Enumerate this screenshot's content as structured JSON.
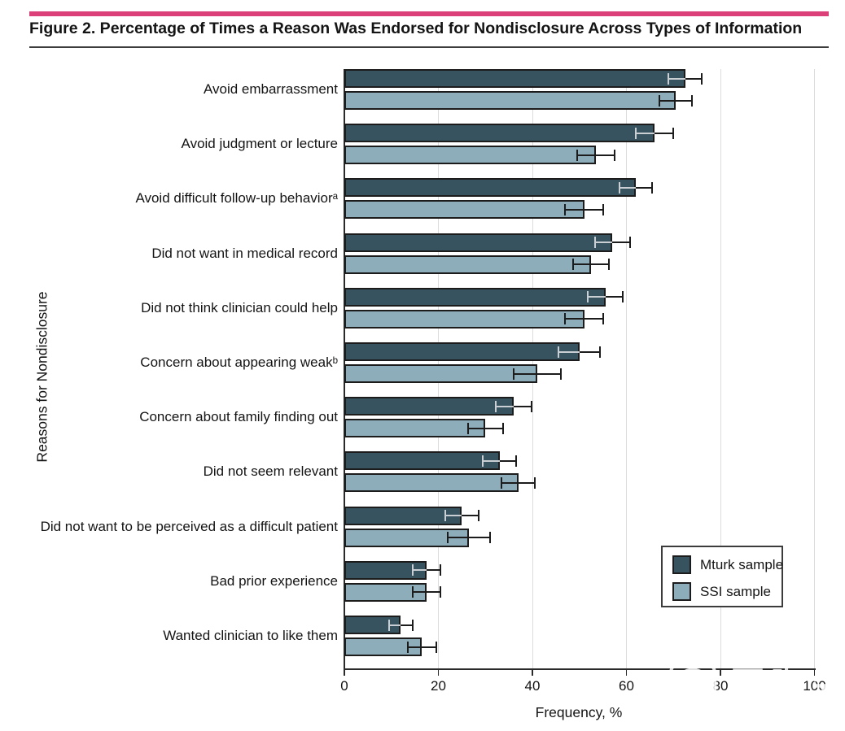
{
  "figure": {
    "title": "Figure 2. Percentage of Times a Reason Was Endorsed for Nondisclosure Across Types of Information"
  },
  "colors": {
    "accent_pink": "#DB4078",
    "mturk_bar": "#36535F",
    "ssi_bar": "#8EADBB",
    "bar_outline": "#1c1c1c",
    "gridline": "#dcdcdc",
    "axis": "#2a2a2a",
    "error_outer": "#1c1c1c",
    "error_inner_on_dark": "#C9CFD2"
  },
  "legend": {
    "items": [
      {
        "label": "Mturk sample",
        "color": "#36535F"
      },
      {
        "label": "SSI sample",
        "color": "#8EADBB"
      }
    ]
  },
  "watermark": {
    "cn_text": "医咖会",
    "en_text": "MEDIECO GROUP",
    "logo": "speech-bubble-logo"
  },
  "chart_data": {
    "type": "bar",
    "orientation": "horizontal",
    "title": "Figure 2. Percentage of Times a Reason Was Endorsed for Nondisclosure Across Types of Information",
    "xlabel": "Frequency, %",
    "ylabel": "Reasons for Nondisclosure",
    "xlim": [
      0,
      100
    ],
    "xticks": [
      0,
      20,
      40,
      60,
      80,
      100
    ],
    "grid": true,
    "error_bars": true,
    "legend_position": "lower right",
    "categories": [
      "Avoid embarrassment",
      "Avoid judgment or lecture",
      "Avoid difficult follow-up behaviorᵃ",
      "Did not want in medical record",
      "Did not think clinician could help",
      "Concern about appearing weakᵇ",
      "Concern about family finding out",
      "Did not seem relevant",
      "Did not want to be perceived as a difficult patient",
      "Bad prior experience",
      "Wanted clinician to like them"
    ],
    "series": [
      {
        "name": "Mturk sample",
        "color": "#36535F",
        "values": [
          72.5,
          66,
          62,
          57,
          55.5,
          50,
          36,
          33,
          25,
          17.5,
          12
        ],
        "error": [
          3.5,
          4,
          3.5,
          3.7,
          3.8,
          4.4,
          3.8,
          3.6,
          3.5,
          3,
          2.5
        ]
      },
      {
        "name": "SSI sample",
        "color": "#8EADBB",
        "values": [
          70.5,
          53.5,
          51,
          52.5,
          51,
          41,
          30,
          37,
          26.5,
          17.5,
          16.5
        ],
        "error": [
          3.5,
          4,
          4,
          3.8,
          4,
          5,
          3.7,
          3.5,
          4.5,
          3,
          3
        ]
      }
    ]
  }
}
